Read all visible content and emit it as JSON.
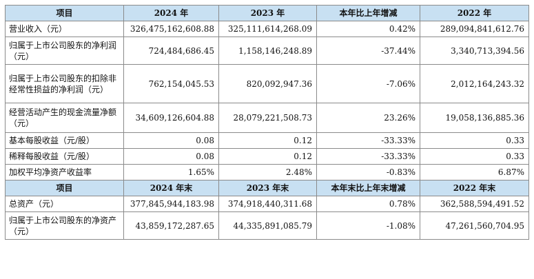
{
  "section1": {
    "headers": [
      "项目",
      "2024 年",
      "2023 年",
      "本年比上年增减",
      "2022 年"
    ],
    "rows": [
      {
        "label": "营业收入（元）",
        "v2024": "326,475,162,608.88",
        "v2023": "325,111,614,268.09",
        "change": "0.42%",
        "v2022": "289,094,841,612.76"
      },
      {
        "label": "归属于上市公司股东的净利润（元）",
        "v2024": "724,484,686.45",
        "v2023": "1,158,146,248.89",
        "change": "-37.44%",
        "v2022": "3,340,713,394.56"
      },
      {
        "label": "归属于上市公司股东的扣除非经常性损益的净利润（元）",
        "v2024": "762,154,045.53",
        "v2023": "820,092,947.36",
        "change": "-7.06%",
        "v2022": "2,012,164,243.32"
      },
      {
        "label": "经营活动产生的现金流量净额（元）",
        "v2024": "34,609,126,604.88",
        "v2023": "28,079,221,508.73",
        "change": "23.26%",
        "v2022": "19,058,136,885.36"
      },
      {
        "label": "基本每股收益（元/股）",
        "v2024": "0.08",
        "v2023": "0.12",
        "change": "-33.33%",
        "v2022": "0.33"
      },
      {
        "label": "稀释每股收益（元/股）",
        "v2024": "0.08",
        "v2023": "0.12",
        "change": "-33.33%",
        "v2022": "0.33"
      },
      {
        "label": "加权平均净资产收益率",
        "v2024": "1.65%",
        "v2023": "2.48%",
        "change": "-0.83%",
        "v2022": "6.87%"
      }
    ]
  },
  "section2": {
    "headers": [
      "项目",
      "2024 年末",
      "2023 年末",
      "本年末比上年末增减",
      "2022 年末"
    ],
    "rows": [
      {
        "label": "总资产（元）",
        "v2024": "377,845,944,183.98",
        "v2023": "374,918,440,311.68",
        "change": "0.78%",
        "v2022": "362,588,594,491.52"
      },
      {
        "label": "归属于上市公司股东的净资产（元）",
        "v2024": "43,859,172,287.65",
        "v2023": "44,335,891,085.79",
        "change": "-1.08%",
        "v2022": "47,261,560,704.95"
      }
    ]
  }
}
